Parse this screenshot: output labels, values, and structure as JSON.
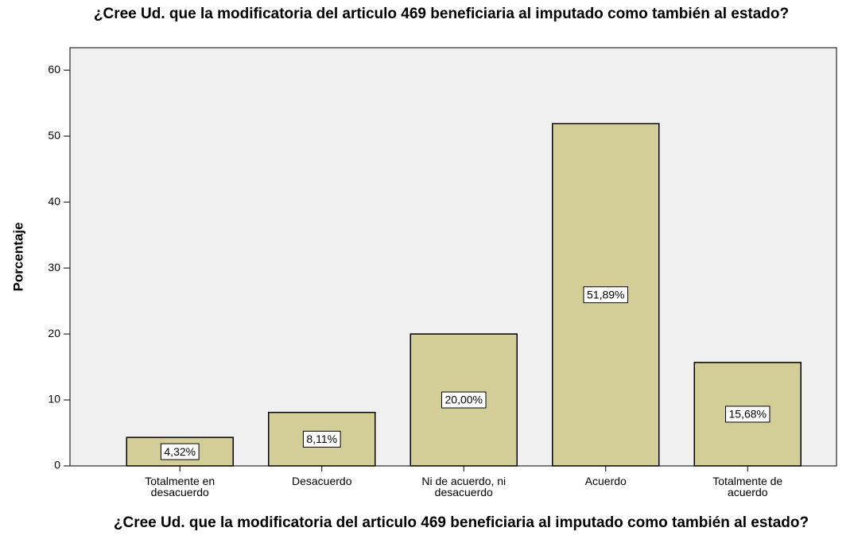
{
  "chart_data": {
    "type": "bar",
    "title": "¿Cree Ud. que la modificatoria del articulo 469 beneficiaria al imputado como también al estado?",
    "x_label": "¿Cree Ud. que la modificatoria del articulo 469 beneficiaria al imputado como también al estado?",
    "y_label": "Porcentaje",
    "categories": [
      "Totalmente en desacuerdo",
      "Desacuerdo",
      "Ni de acuerdo, ni desacuerdo",
      "Acuerdo",
      "Totalmente de acuerdo"
    ],
    "values": [
      4.32,
      8.11,
      20.0,
      51.89,
      15.68
    ],
    "value_labels": [
      "4,32%",
      "8,11%",
      "20,00%",
      "51,89%",
      "15,68%"
    ],
    "color": "#d3ce97",
    "ylim": [
      0,
      63.4
    ],
    "yticks": [
      0,
      10,
      20,
      30,
      40,
      50,
      60
    ],
    "grid": false
  }
}
